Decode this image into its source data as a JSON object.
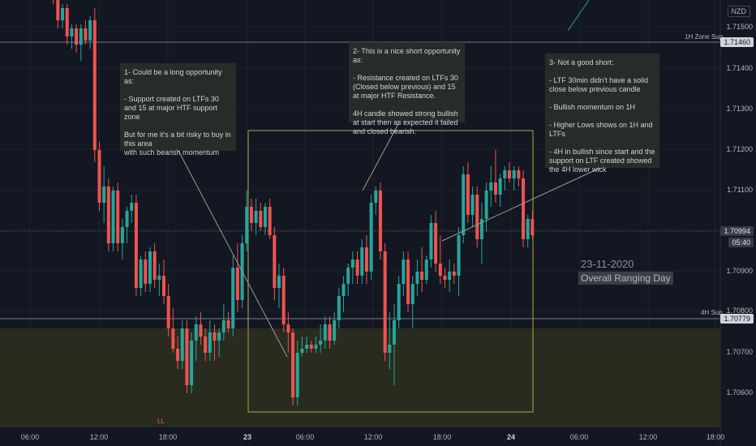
{
  "currency": "NZD",
  "price_badges": {
    "h1_zone_price": "1.71460",
    "current_price": "1.70994",
    "countdown": "05:40",
    "h4_zone_price": "1.70779"
  },
  "level_labels": {
    "h1_zone": "1H  Zone Sup",
    "h4_zone": "4H Sup",
    "ll": "LL"
  },
  "notes": {
    "note1": "1- Could be a long opportunity as:\n\n- Support created on LTFs 30 and 15 at major HTF support zone\n\nBut for me it's a bit risky to buy in this area\nwith such bearish momentum",
    "note2": "2- This is a nice short opportunity as:\n\n- Resistance created on LTFs 30 (Closed below previous) and 15 at major HTF Resistance.\n\n4H candle showed strong bullish at start then as expected it failed and closed bearish.",
    "note3": "3- Not a good short:\n\n- LTF 30min didn't have a solid close below previous candle\n\n- Bullish momentum on 1H\n\n- Higher Lows shows on 1H and LTFs\n\n- 4H in bullish since start and the support on LTF created showed the 4H lower wick"
  },
  "day_annotation": {
    "date": "23-11-2020",
    "label": "Overall Ranging Day"
  },
  "colors": {
    "background": "#131722",
    "bull": "#26a69a",
    "bear": "#ef5350",
    "box": "#b4a645",
    "zone": "#2a2b1f"
  },
  "chart_data": {
    "type": "candlestick",
    "instrument": "NZD",
    "ylim": [
      1.7052,
      1.7158
    ],
    "y_ticks": [
      "1.71500",
      "1.71400",
      "1.71300",
      "1.71200",
      "1.71100",
      "1.71000",
      "1.70900",
      "1.70800",
      "1.70700",
      "1.70600"
    ],
    "x_ticks": [
      "06:00",
      "12:00",
      "18:00",
      "23",
      "06:00",
      "12:00",
      "18:00",
      "24",
      "06:00",
      "12:00",
      "18:00"
    ],
    "levels": [
      {
        "label": "1H  Zone Sup",
        "price": 1.7146
      },
      {
        "label": "4H Sup",
        "price": 1.70779
      },
      {
        "label": "current",
        "price": 1.70994
      }
    ],
    "candles": [
      [
        1.7162,
        1.7165,
        1.7158,
        1.716
      ],
      [
        1.716,
        1.7163,
        1.7157,
        1.7159
      ],
      [
        1.7159,
        1.716,
        1.7151,
        1.7153
      ],
      [
        1.7153,
        1.7157,
        1.7151,
        1.7156
      ],
      [
        1.7156,
        1.7157,
        1.7147,
        1.7149
      ],
      [
        1.7149,
        1.7152,
        1.7146,
        1.7151
      ],
      [
        1.7151,
        1.7152,
        1.7145,
        1.7147
      ],
      [
        1.7147,
        1.7152,
        1.7143,
        1.7151
      ],
      [
        1.7151,
        1.7153,
        1.7147,
        1.7148
      ],
      [
        1.7148,
        1.7154,
        1.7146,
        1.7153
      ],
      [
        1.7153,
        1.7156,
        1.7118,
        1.7121
      ],
      [
        1.7121,
        1.7123,
        1.7106,
        1.7108
      ],
      [
        1.7108,
        1.7117,
        1.7103,
        1.7112
      ],
      [
        1.7112,
        1.7114,
        1.7096,
        1.7098
      ],
      [
        1.7098,
        1.7112,
        1.7096,
        1.7111
      ],
      [
        1.7111,
        1.7113,
        1.7096,
        1.7098
      ],
      [
        1.7098,
        1.7104,
        1.7094,
        1.7102
      ],
      [
        1.7102,
        1.7107,
        1.7098,
        1.7106
      ],
      [
        1.7106,
        1.711,
        1.7103,
        1.7108
      ],
      [
        1.7108,
        1.711,
        1.7085,
        1.7087
      ],
      [
        1.7087,
        1.7095,
        1.7085,
        1.7094
      ],
      [
        1.7094,
        1.7096,
        1.7086,
        1.7088
      ],
      [
        1.7088,
        1.7097,
        1.7086,
        1.7096
      ],
      [
        1.7096,
        1.7098,
        1.7087,
        1.7089
      ],
      [
        1.7089,
        1.7093,
        1.7085,
        1.709
      ],
      [
        1.709,
        1.7094,
        1.7083,
        1.7085
      ],
      [
        1.7085,
        1.7088,
        1.7075,
        1.7077
      ],
      [
        1.7077,
        1.7082,
        1.7071,
        1.7072
      ],
      [
        1.7072,
        1.7075,
        1.7067,
        1.7069
      ],
      [
        1.7069,
        1.7079,
        1.7067,
        1.7077
      ],
      [
        1.7077,
        1.7079,
        1.7061,
        1.7063
      ],
      [
        1.7063,
        1.7076,
        1.7061,
        1.7074
      ],
      [
        1.7074,
        1.708,
        1.7069,
        1.7078
      ],
      [
        1.7078,
        1.7081,
        1.7073,
        1.7075
      ],
      [
        1.7075,
        1.7077,
        1.7069,
        1.7071
      ],
      [
        1.7071,
        1.7079,
        1.7069,
        1.7076
      ],
      [
        1.7076,
        1.7078,
        1.7069,
        1.7074
      ],
      [
        1.7074,
        1.7077,
        1.707,
        1.7076
      ],
      [
        1.7076,
        1.7083,
        1.7074,
        1.7079
      ],
      [
        1.7079,
        1.7081,
        1.7076,
        1.7077
      ],
      [
        1.7077,
        1.7095,
        1.7075,
        1.7092
      ],
      [
        1.7092,
        1.7098,
        1.7081,
        1.7084
      ],
      [
        1.7084,
        1.71,
        1.7082,
        1.7098
      ],
      [
        1.7098,
        1.7111,
        1.7096,
        1.7107
      ],
      [
        1.7107,
        1.7109,
        1.7101,
        1.7103
      ],
      [
        1.7103,
        1.7109,
        1.71,
        1.7106
      ],
      [
        1.7106,
        1.7108,
        1.7101,
        1.7102
      ],
      [
        1.7102,
        1.7108,
        1.71,
        1.7107
      ],
      [
        1.7107,
        1.7109,
        1.7099,
        1.71
      ],
      [
        1.71,
        1.7102,
        1.7084,
        1.7087
      ],
      [
        1.7087,
        1.7093,
        1.7082,
        1.709
      ],
      [
        1.709,
        1.7092,
        1.7076,
        1.7078
      ],
      [
        1.7078,
        1.7081,
        1.7071,
        1.7076
      ],
      [
        1.7076,
        1.7077,
        1.7058,
        1.706
      ],
      [
        1.706,
        1.7074,
        1.7058,
        1.7071
      ],
      [
        1.7071,
        1.7075,
        1.707,
        1.7072
      ],
      [
        1.7072,
        1.7075,
        1.7071,
        1.7073
      ],
      [
        1.7073,
        1.7074,
        1.7071,
        1.7072
      ],
      [
        1.7072,
        1.7075,
        1.7071,
        1.7073
      ],
      [
        1.7073,
        1.7078,
        1.7071,
        1.7074
      ],
      [
        1.7074,
        1.708,
        1.7072,
        1.7078
      ],
      [
        1.7078,
        1.708,
        1.7072,
        1.7074
      ],
      [
        1.7074,
        1.7081,
        1.7073,
        1.7079
      ],
      [
        1.7079,
        1.7087,
        1.7077,
        1.7085
      ],
      [
        1.7085,
        1.709,
        1.7081,
        1.7088
      ],
      [
        1.7088,
        1.7093,
        1.7085,
        1.7092
      ],
      [
        1.7092,
        1.7096,
        1.7088,
        1.7094
      ],
      [
        1.7094,
        1.7096,
        1.7088,
        1.709
      ],
      [
        1.709,
        1.7099,
        1.7088,
        1.7097
      ],
      [
        1.7097,
        1.71,
        1.7088,
        1.7091
      ],
      [
        1.7091,
        1.711,
        1.7089,
        1.7108
      ],
      [
        1.7108,
        1.7112,
        1.7105,
        1.7111
      ],
      [
        1.7111,
        1.7113,
        1.7094,
        1.7096
      ],
      [
        1.7096,
        1.7098,
        1.7069,
        1.7071
      ],
      [
        1.7071,
        1.7081,
        1.7067,
        1.7073
      ],
      [
        1.7073,
        1.7083,
        1.7063,
        1.7079
      ],
      [
        1.7079,
        1.709,
        1.7077,
        1.7088
      ],
      [
        1.7088,
        1.7096,
        1.7085,
        1.7094
      ],
      [
        1.7094,
        1.7096,
        1.7081,
        1.7083
      ],
      [
        1.7083,
        1.709,
        1.7077,
        1.7088
      ],
      [
        1.7088,
        1.7094,
        1.7085,
        1.7091
      ],
      [
        1.7091,
        1.7097,
        1.7086,
        1.7089
      ],
      [
        1.7089,
        1.7095,
        1.7088,
        1.7094
      ],
      [
        1.7094,
        1.7105,
        1.7092,
        1.7103
      ],
      [
        1.7103,
        1.7106,
        1.7091,
        1.7093
      ],
      [
        1.7093,
        1.71,
        1.7088,
        1.709
      ],
      [
        1.709,
        1.7092,
        1.7087,
        1.7089
      ],
      [
        1.7089,
        1.7094,
        1.7086,
        1.7091
      ],
      [
        1.7091,
        1.7093,
        1.7088,
        1.709
      ],
      [
        1.709,
        1.7102,
        1.7085,
        1.71
      ],
      [
        1.71,
        1.7117,
        1.7098,
        1.7115
      ],
      [
        1.7115,
        1.7118,
        1.7103,
        1.7105
      ],
      [
        1.7105,
        1.7112,
        1.7102,
        1.711
      ],
      [
        1.711,
        1.7112,
        1.7097,
        1.7099
      ],
      [
        1.7099,
        1.7108,
        1.7093,
        1.7104
      ],
      [
        1.7104,
        1.7113,
        1.7101,
        1.7111
      ],
      [
        1.7111,
        1.7117,
        1.7107,
        1.7113
      ],
      [
        1.7113,
        1.7121,
        1.7108,
        1.711
      ],
      [
        1.711,
        1.7115,
        1.7107,
        1.7114
      ],
      [
        1.7114,
        1.7117,
        1.7111,
        1.7116
      ],
      [
        1.7116,
        1.7118,
        1.7113,
        1.7114
      ],
      [
        1.7114,
        1.7117,
        1.7111,
        1.7116
      ],
      [
        1.7116,
        1.7117,
        1.7112,
        1.7114
      ],
      [
        1.7114,
        1.7116,
        1.7097,
        1.7099
      ],
      [
        1.7099,
        1.7105,
        1.7097,
        1.7104
      ],
      [
        1.7104,
        1.7106,
        1.7099,
        1.71
      ]
    ]
  }
}
